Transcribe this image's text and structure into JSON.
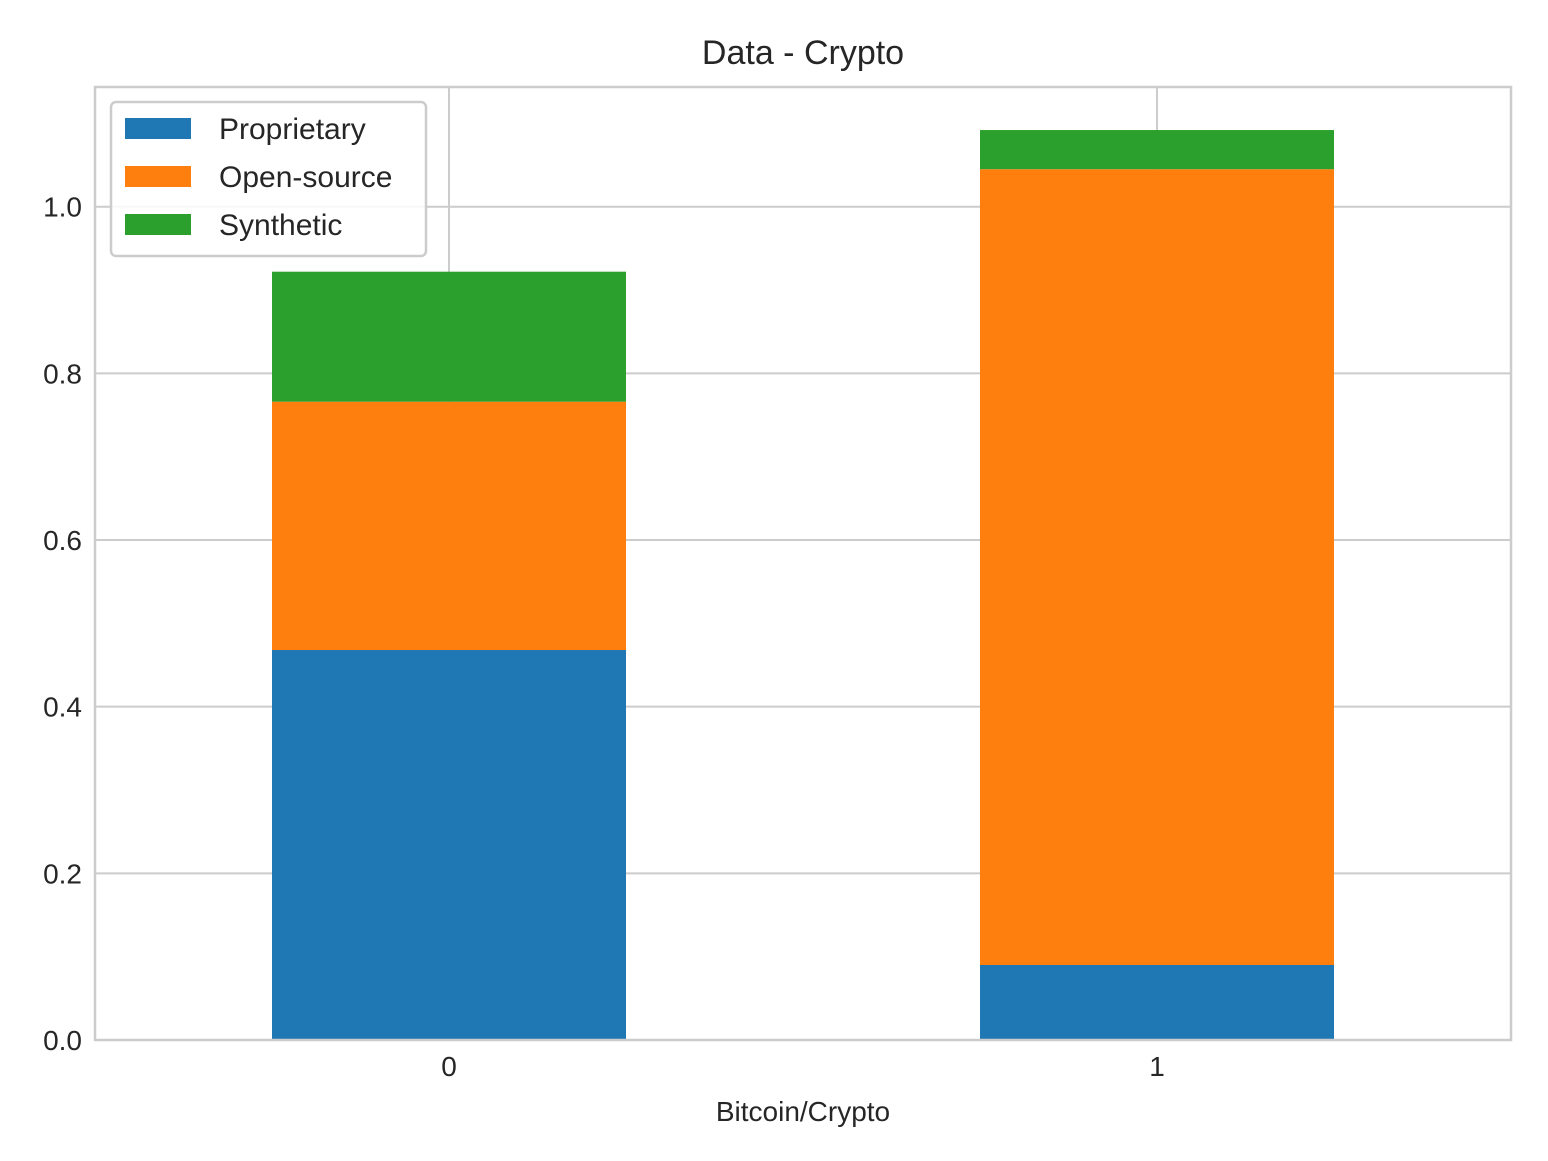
{
  "chart_data": {
    "type": "bar",
    "stacked": true,
    "title": "Data - Crypto",
    "xlabel": "Bitcoin/Crypto",
    "ylabel": "",
    "categories": [
      "0",
      "1"
    ],
    "series": [
      {
        "name": "Proprietary",
        "values": [
          0.468,
          0.09
        ],
        "color": "#1f77b4"
      },
      {
        "name": "Open-source",
        "values": [
          0.298,
          0.955
        ],
        "color": "#ff7f0e"
      },
      {
        "name": "Synthetic",
        "values": [
          0.156,
          0.047
        ],
        "color": "#2ca02c"
      }
    ],
    "ylim": [
      0,
      1.15
    ],
    "yticks": [
      "0.0",
      "0.2",
      "0.4",
      "0.6",
      "0.8",
      "1.0"
    ],
    "grid": true,
    "legend_position": "top-left"
  }
}
